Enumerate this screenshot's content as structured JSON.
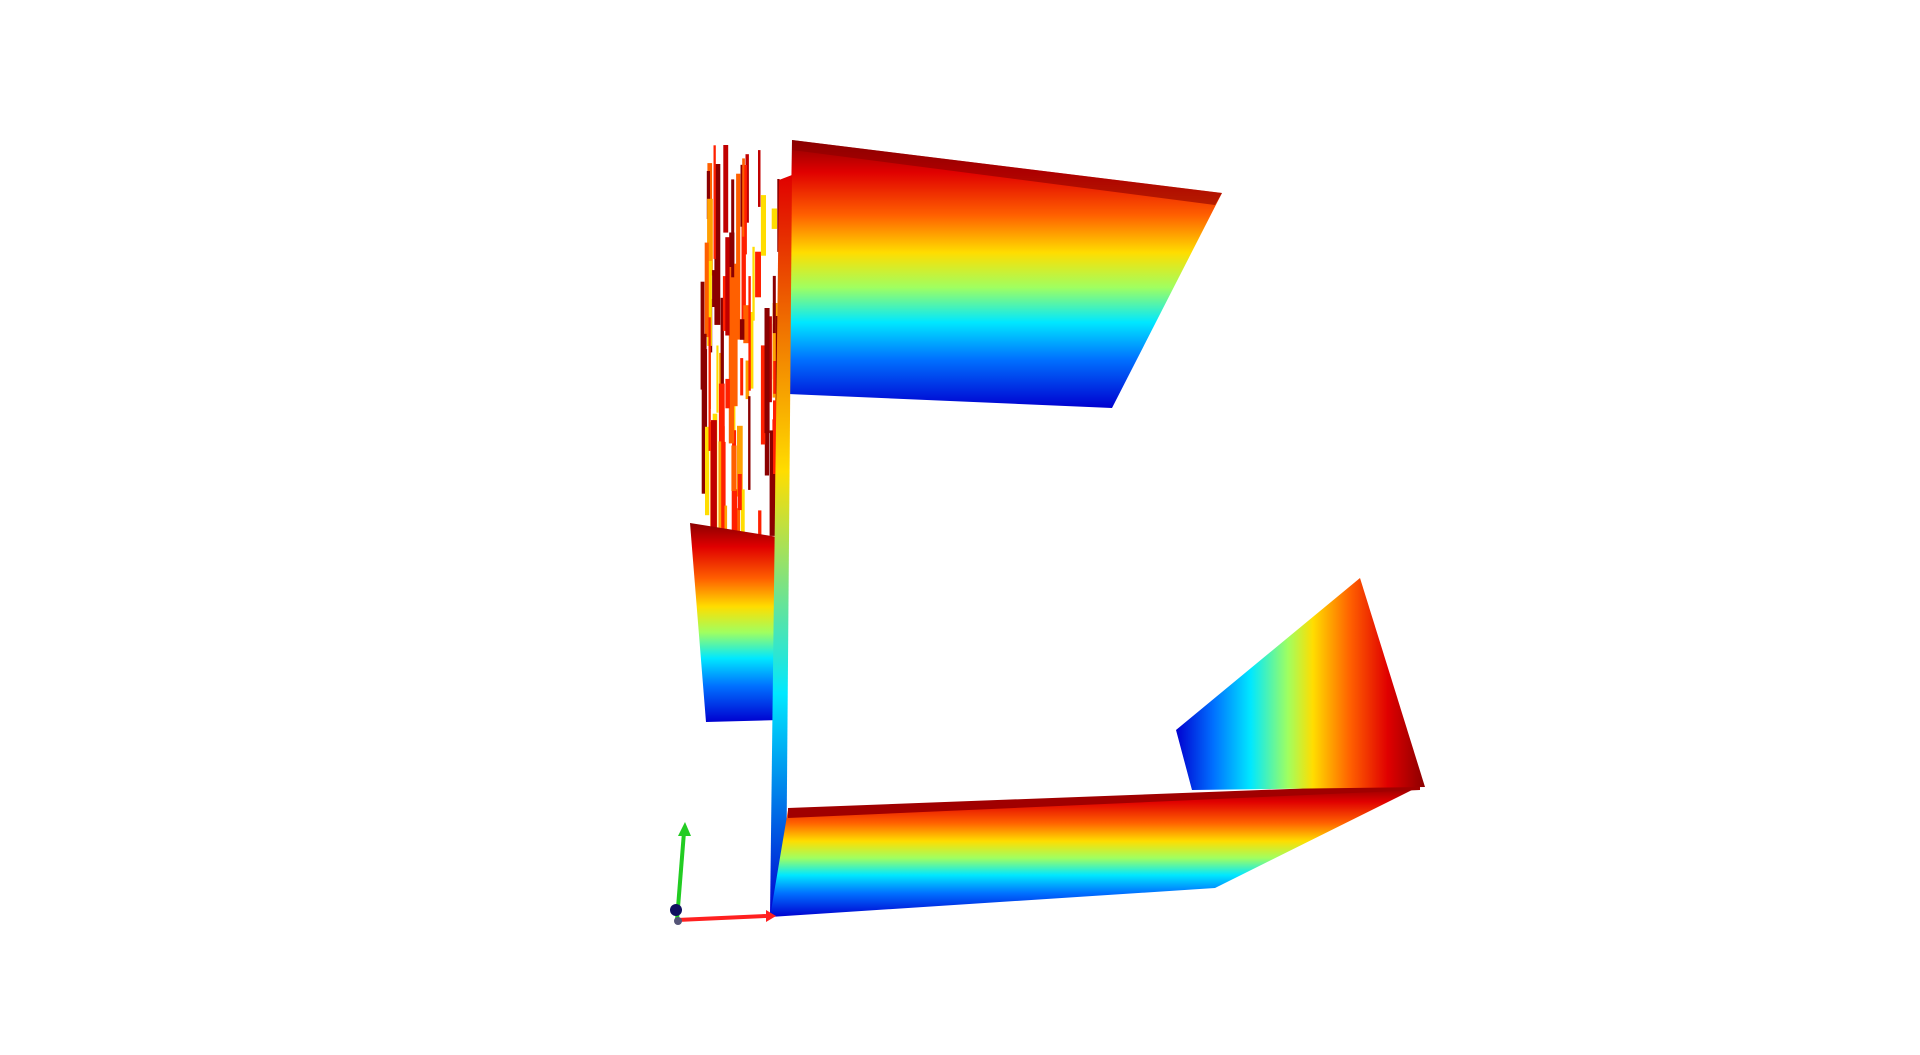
{
  "viewer": {
    "background": "#ffffff",
    "colormap": "jet",
    "colormap_stops": [
      "#00008f",
      "#0000ff",
      "#00ffff",
      "#ffff00",
      "#ff0000",
      "#800000"
    ],
    "axes_gizmo": {
      "x_axis_color": "#ff0000",
      "y_axis_color": "#00cc00",
      "z_axis_color": "#000080"
    },
    "objects": [
      "point-cloud-top-wall",
      "point-cloud-left-clutter",
      "point-cloud-left-lower-block",
      "point-cloud-thin-vertical-wall",
      "point-cloud-bottom-wall",
      "point-cloud-right-angled-wall"
    ]
  }
}
